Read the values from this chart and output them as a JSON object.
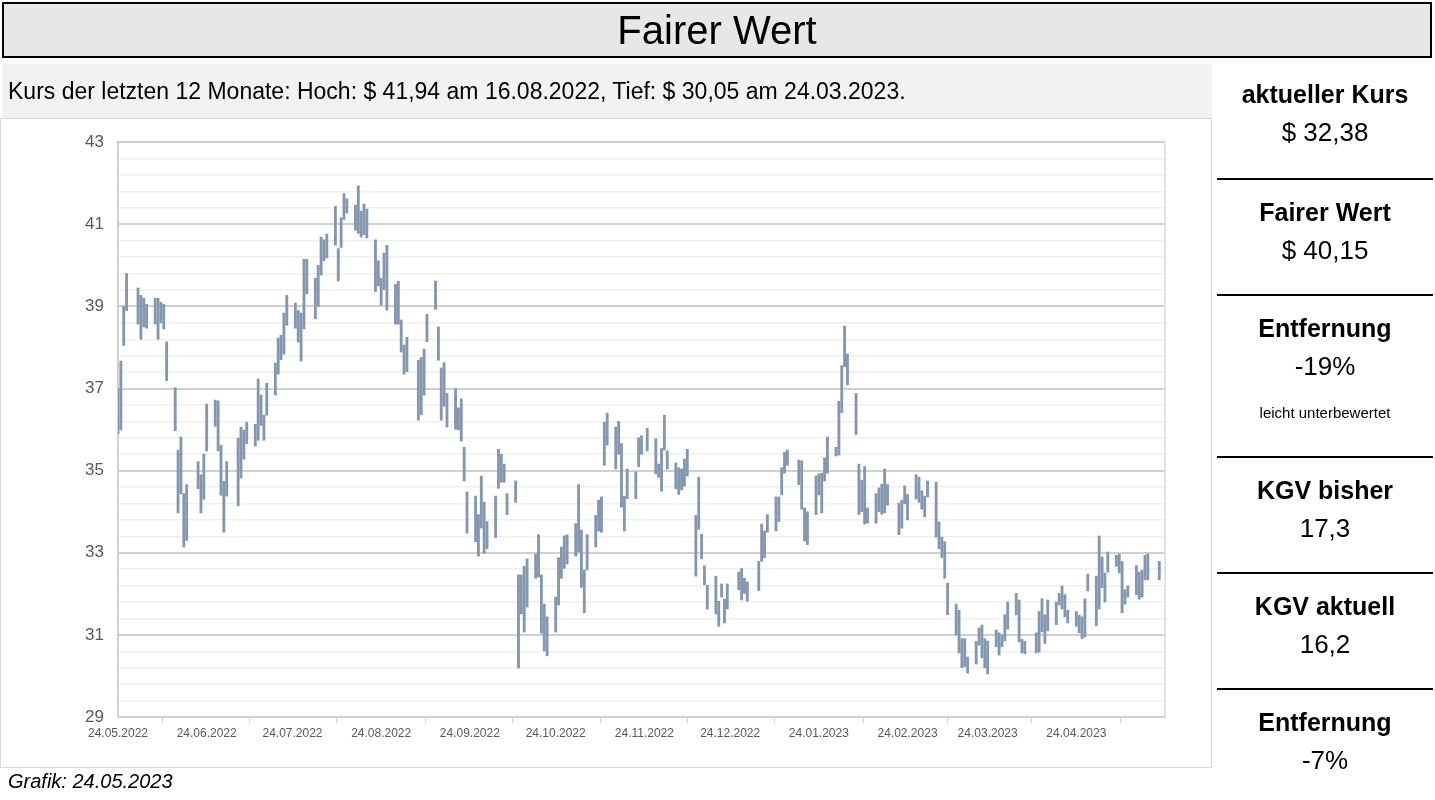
{
  "chart_data": [
    {
      "type": "bar",
      "title": "Fairer Wert",
      "subtitle": "Kurs der letzten 12 Monate: Hoch: $ 41,94 am 16.08.2022, Tief: $ 30,05 am 24.03.2023.",
      "color": "#8497b0",
      "grid": "y",
      "x": [
        "2022-05-24",
        "2022-05-25",
        "2022-05-26",
        "2022-05-27",
        "2022-05-31",
        "2022-06-01",
        "2022-06-02",
        "2022-06-03",
        "2022-06-06",
        "2022-06-07",
        "2022-06-08",
        "2022-06-09",
        "2022-06-10",
        "2022-06-13",
        "2022-06-14",
        "2022-06-15",
        "2022-06-16",
        "2022-06-17",
        "2022-06-21",
        "2022-06-22",
        "2022-06-23",
        "2022-06-24",
        "2022-06-27",
        "2022-06-28",
        "2022-06-29",
        "2022-06-30",
        "2022-07-01",
        "2022-07-05",
        "2022-07-06",
        "2022-07-07",
        "2022-07-08",
        "2022-07-11",
        "2022-07-12",
        "2022-07-13",
        "2022-07-14",
        "2022-07-15",
        "2022-07-18",
        "2022-07-19",
        "2022-07-20",
        "2022-07-21",
        "2022-07-22",
        "2022-07-25",
        "2022-07-26",
        "2022-07-27",
        "2022-07-28",
        "2022-07-29",
        "2022-08-01",
        "2022-08-02",
        "2022-08-03",
        "2022-08-04",
        "2022-08-05",
        "2022-08-08",
        "2022-08-09",
        "2022-08-10",
        "2022-08-11",
        "2022-08-12",
        "2022-08-15",
        "2022-08-16",
        "2022-08-17",
        "2022-08-18",
        "2022-08-19",
        "2022-08-22",
        "2022-08-23",
        "2022-08-24",
        "2022-08-25",
        "2022-08-26",
        "2022-08-29",
        "2022-08-30",
        "2022-08-31",
        "2022-09-01",
        "2022-09-02",
        "2022-09-06",
        "2022-09-07",
        "2022-09-08",
        "2022-09-09",
        "2022-09-12",
        "2022-09-13",
        "2022-09-14",
        "2022-09-15",
        "2022-09-16",
        "2022-09-19",
        "2022-09-20",
        "2022-09-21",
        "2022-09-22",
        "2022-09-23",
        "2022-09-26",
        "2022-09-27",
        "2022-09-28",
        "2022-09-29",
        "2022-09-30",
        "2022-10-03",
        "2022-10-04",
        "2022-10-05",
        "2022-10-06",
        "2022-10-07",
        "2022-10-10",
        "2022-10-11",
        "2022-10-12",
        "2022-10-13",
        "2022-10-14",
        "2022-10-17",
        "2022-10-18",
        "2022-10-19",
        "2022-10-20",
        "2022-10-21",
        "2022-10-24",
        "2022-10-25",
        "2022-10-26",
        "2022-10-27",
        "2022-10-28",
        "2022-10-31",
        "2022-11-01",
        "2022-11-02",
        "2022-11-03",
        "2022-11-04",
        "2022-11-07",
        "2022-11-08",
        "2022-11-09",
        "2022-11-10",
        "2022-11-11",
        "2022-11-14",
        "2022-11-15",
        "2022-11-16",
        "2022-11-17",
        "2022-11-18",
        "2022-11-21",
        "2022-11-22",
        "2022-11-23",
        "2022-11-25",
        "2022-11-28",
        "2022-11-29",
        "2022-11-30",
        "2022-12-01",
        "2022-12-02",
        "2022-12-05",
        "2022-12-06",
        "2022-12-07",
        "2022-12-08",
        "2022-12-09",
        "2022-12-12",
        "2022-12-13",
        "2022-12-14",
        "2022-12-15",
        "2022-12-16",
        "2022-12-19",
        "2022-12-20",
        "2022-12-21",
        "2022-12-22",
        "2022-12-23",
        "2022-12-27",
        "2022-12-28",
        "2022-12-29",
        "2022-12-30",
        "2023-01-03",
        "2023-01-04",
        "2023-01-05",
        "2023-01-06",
        "2023-01-09",
        "2023-01-10",
        "2023-01-11",
        "2023-01-12",
        "2023-01-13",
        "2023-01-17",
        "2023-01-18",
        "2023-01-19",
        "2023-01-20",
        "2023-01-23",
        "2023-01-24",
        "2023-01-25",
        "2023-01-26",
        "2023-01-27",
        "2023-01-30",
        "2023-01-31",
        "2023-02-01",
        "2023-02-02",
        "2023-02-03",
        "2023-02-06",
        "2023-02-07",
        "2023-02-08",
        "2023-02-09",
        "2023-02-10",
        "2023-02-13",
        "2023-02-14",
        "2023-02-15",
        "2023-02-16",
        "2023-02-17",
        "2023-02-21",
        "2023-02-22",
        "2023-02-23",
        "2023-02-24",
        "2023-02-27",
        "2023-02-28",
        "2023-03-01",
        "2023-03-02",
        "2023-03-03",
        "2023-03-06",
        "2023-03-07",
        "2023-03-08",
        "2023-03-09",
        "2023-03-10",
        "2023-03-13",
        "2023-03-14",
        "2023-03-15",
        "2023-03-16",
        "2023-03-17",
        "2023-03-20",
        "2023-03-21",
        "2023-03-22",
        "2023-03-23",
        "2023-03-24",
        "2023-03-27",
        "2023-03-28",
        "2023-03-29",
        "2023-03-30",
        "2023-03-31",
        "2023-04-03",
        "2023-04-04",
        "2023-04-05",
        "2023-04-06",
        "2023-04-10",
        "2023-04-11",
        "2023-04-12",
        "2023-04-13",
        "2023-04-14",
        "2023-04-17",
        "2023-04-18",
        "2023-04-19",
        "2023-04-20",
        "2023-04-21",
        "2023-04-24",
        "2023-04-25",
        "2023-04-26",
        "2023-04-27",
        "2023-04-28",
        "2023-05-01",
        "2023-05-02",
        "2023-05-03",
        "2023-05-04",
        "2023-05-05",
        "2023-05-08",
        "2023-05-09",
        "2023-05-10",
        "2023-05-11",
        "2023-05-12",
        "2023-05-15",
        "2023-05-16",
        "2023-05-17",
        "2023-05-18",
        "2023-05-19",
        "2023-05-23"
      ],
      "base": [
        35.9,
        35.99,
        38.05,
        38.9,
        38.57,
        38.2,
        38.5,
        38.47,
        38.57,
        38.2,
        38.6,
        38.45,
        37.19,
        35.97,
        33.97,
        34.44,
        33.14,
        33.3,
        34.56,
        33.97,
        34.3,
        35.48,
        36.08,
        35.48,
        34.4,
        33.5,
        34.38,
        34.14,
        34.82,
        35.28,
        35.66,
        35.6,
        35.74,
        36.1,
        35.74,
        36.35,
        36.84,
        37.35,
        37.7,
        37.84,
        38.54,
        38.47,
        38.13,
        37.67,
        38.45,
        39.31,
        38.7,
        39.0,
        39.76,
        40.11,
        40.18,
        40.49,
        39.62,
        40.44,
        41.12,
        41.28,
        40.86,
        40.78,
        40.69,
        40.75,
        40.67,
        39.36,
        39.5,
        39.03,
        39.41,
        38.91,
        38.57,
        38.57,
        37.89,
        37.35,
        37.41,
        36.23,
        36.36,
        36.84,
        38.14,
        38.93,
        37.69,
        36.23,
        36.57,
        36.06,
        36.01,
        35.99,
        35.72,
        34.75,
        33.48,
        33.27,
        32.92,
        33.6,
        32.99,
        33.1,
        33.37,
        34.57,
        34.72,
        34.72,
        33.93,
        34.23,
        30.19,
        31.51,
        31.07,
        31.68,
        32.38,
        32.41,
        31.04,
        30.61,
        30.49,
        31.07,
        31.73,
        32.38,
        32.62,
        32.73,
        32.92,
        33.02,
        32.16,
        31.54,
        32.58,
        33.14,
        33.53,
        33.5,
        35.13,
        35.62,
        35.04,
        35.4,
        34.11,
        33.53,
        34.32,
        34.32,
        35.1,
        35.4,
        35.48,
        34.92,
        34.84,
        34.5,
        35.5,
        35.04,
        34.56,
        34.42,
        34.53,
        34.62,
        34.87,
        32.43,
        33.57,
        32.85,
        32.22,
        31.63,
        31.51,
        31.21,
        31.92,
        31.29,
        31.63,
        32.1,
        31.85,
        32.01,
        31.82,
        32.08,
        32.79,
        32.88,
        33.5,
        33.53,
        33.76,
        34.41,
        34.94,
        35.13,
        34.66,
        34.06,
        33.29,
        33.2,
        33.93,
        34.41,
        33.97,
        34.75,
        34.94,
        35.36,
        35.38,
        36.41,
        37.53,
        37.09,
        35.88,
        33.93,
        34.0,
        33.7,
        33.72,
        33.72,
        34.0,
        33.94,
        33.97,
        34.16,
        33.44,
        33.6,
        34.19,
        33.8,
        34.31,
        34.23,
        34.06,
        33.88,
        34.36,
        33.38,
        33.1,
        32.88,
        32.38,
        31.49,
        31.0,
        30.56,
        30.2,
        30.23,
        30.07,
        30.29,
        30.75,
        30.44,
        30.2,
        30.05,
        30.71,
        30.51,
        30.71,
        30.85,
        31.14,
        31.49,
        30.83,
        30.56,
        30.54,
        30.56,
        30.58,
        31.07,
        30.79,
        31.1,
        31.25,
        31.73,
        31.63,
        31.44,
        31.29,
        31.21,
        31.05,
        30.91,
        30.95,
        32.07,
        31.22,
        31.63,
        32.15,
        31.8,
        32.53,
        32.67,
        32.51,
        31.54,
        31.75,
        31.92,
        31.98,
        31.87,
        31.92,
        32.34,
        32.34,
        32.34
      ],
      "values": [
        1.1,
        1.68,
        0.95,
        0.9,
        0.88,
        1.07,
        0.7,
        0.58,
        0.63,
        1.0,
        0.5,
        0.6,
        0.95,
        1.05,
        1.53,
        1.38,
        1.3,
        1.36,
        0.66,
        0.93,
        1.1,
        1.14,
        0.64,
        1.22,
        1.22,
        1.24,
        0.84,
        1.65,
        1.24,
        0.71,
        0.52,
        0.53,
        1.49,
        0.74,
        0.61,
        0.78,
        0.78,
        0.88,
        0.6,
        1.0,
        0.73,
        0.61,
        0.77,
        1.17,
        1.7,
        0.84,
        0.99,
        1.0,
        0.93,
        0.51,
        0.58,
        0.95,
        0.79,
        0.72,
        0.63,
        0.34,
        0.61,
        1.16,
        0.63,
        0.74,
        0.7,
        1.26,
        0.61,
        0.66,
        0.89,
        1.58,
        0.97,
        1.04,
        0.78,
        0.71,
        0.84,
        1.46,
        1.4,
        1.12,
        0.67,
        0.69,
        0.81,
        1.27,
        1.06,
        0.82,
        0.99,
        0.54,
        1.03,
        0.82,
        1.0,
        1.11,
        1.01,
        1.27,
        1.24,
        0.66,
        1.01,
        0.95,
        0.68,
        0.44,
        0.51,
        0.52,
        2.27,
        0.95,
        1.6,
        1.17,
        0.59,
        1.03,
        1.42,
        1.14,
        0.95,
        0.85,
        1.15,
        0.76,
        0.79,
        0.71,
        0.79,
        1.64,
        1.39,
        1.04,
        0.86,
        0.77,
        0.75,
        0.86,
        1.05,
        0.78,
        1.02,
        0.8,
        1.55,
        0.85,
        0.72,
        0.65,
        0.7,
        0.45,
        0.55,
        0.86,
        0.32,
        1.04,
        0.85,
        0.44,
        0.63,
        0.65,
        0.51,
        0.66,
        0.65,
        1.48,
        1.27,
        0.6,
        0.46,
        0.58,
        0.92,
        0.61,
        0.32,
        0.58,
        0.61,
        0.43,
        0.77,
        0.37,
        0.47,
        0.71,
        0.91,
        0.65,
        0.43,
        0.83,
        0.6,
        0.66,
        0.51,
        0.37,
        0.6,
        1.18,
        0.8,
        0.8,
        0.94,
        0.51,
        0.97,
        0.56,
        0.88,
        0.21,
        1.31,
        1.15,
        0.99,
        0.75,
        1.0,
        1.23,
        0.77,
        1.4,
        0.37,
        0.72,
        0.58,
        0.73,
        1.07,
        0.5,
        0.77,
        0.68,
        0.44,
        0.62,
        0.59,
        0.61,
        0.45,
        0.5,
        0.39,
        1.34,
        0.65,
        0.5,
        0.89,
        0.77,
        0.75,
        1.04,
        0.71,
        0.68,
        0.39,
        0.55,
        0.42,
        0.8,
        0.71,
        0.8,
        0.41,
        0.54,
        0.29,
        0.64,
        0.66,
        0.52,
        1.02,
        0.33,
        0.3,
        0.49,
        0.99,
        0.81,
        0.7,
        0.75,
        0.55,
        0.28,
        0.56,
        0.54,
        0.31,
        0.36,
        0.43,
        0.53,
        0.93,
        0.41,
        1.21,
        1.78,
        0.75,
        0.71,
        0.49,
        0.27,
        0.46,
        1.25,
        0.35,
        0.27,
        0.71,
        0.66,
        0.66,
        0.6,
        0.63,
        0.45
      ],
      "xlim": [
        "2022-05-24",
        "2023-05-25"
      ],
      "xticks": [
        {
          "value": "2022-05-24",
          "label": "24.05.2022"
        },
        {
          "value": "2022-06-24",
          "label": "24.06.2022"
        },
        {
          "value": "2022-07-24",
          "label": "24.07.2022"
        },
        {
          "value": "2022-08-24",
          "label": "24.08.2022"
        },
        {
          "value": "2022-09-24",
          "label": "24.09.2022"
        },
        {
          "value": "2022-10-24",
          "label": "24.10.2022"
        },
        {
          "value": "2022-11-24",
          "label": "24.11.2022"
        },
        {
          "value": "2022-12-24",
          "label": "24.12.2022"
        },
        {
          "value": "2023-01-24",
          "label": "24.01.2023"
        },
        {
          "value": "2023-02-24",
          "label": "24.02.2023"
        },
        {
          "value": "2023-03-24",
          "label": "24.03.2023"
        },
        {
          "value": "2023-04-24",
          "label": "24.04.2023"
        }
      ],
      "ylim": [
        29,
        43
      ],
      "yticks": [
        29,
        {
          "value": 29.4,
          "label": null
        },
        {
          "value": 29.8,
          "label": null
        },
        {
          "value": 30.2,
          "label": null
        },
        {
          "value": 30.6,
          "label": null
        },
        31,
        {
          "value": 31.4,
          "label": null
        },
        {
          "value": 31.8,
          "label": null
        },
        {
          "value": 32.2,
          "label": null
        },
        {
          "value": 32.6,
          "label": null
        },
        33,
        {
          "value": 33.4,
          "label": null
        },
        {
          "value": 33.8,
          "label": null
        },
        {
          "value": 34.2,
          "label": null
        },
        {
          "value": 34.6,
          "label": null
        },
        35,
        {
          "value": 35.4,
          "label": null
        },
        {
          "value": 35.8,
          "label": null
        },
        {
          "value": 36.2,
          "label": null
        },
        {
          "value": 36.6,
          "label": null
        },
        37,
        {
          "value": 37.4,
          "label": null
        },
        {
          "value": 37.8,
          "label": null
        },
        {
          "value": 38.2,
          "label": null
        },
        {
          "value": 38.6,
          "label": null
        },
        39,
        {
          "value": 39.4,
          "label": null
        },
        {
          "value": 39.8,
          "label": null
        },
        {
          "value": 40.2,
          "label": null
        },
        {
          "value": 40.6,
          "label": null
        },
        41,
        {
          "value": 41.4,
          "label": null
        },
        {
          "value": 41.8,
          "label": null
        },
        {
          "value": 42.2,
          "label": null
        },
        {
          "value": 42.6,
          "label": null
        },
        43
      ],
      "annotations": [
        "Grafik: 24.05.2023"
      ]
    },
    {
      "type": "other",
      "title": "aktueller Kurs",
      "subtitle": "$ 32,38"
    },
    {
      "type": "other",
      "title": "Fairer Wert",
      "subtitle": "$ 40,15"
    },
    {
      "type": "other",
      "title": "Entfernung",
      "subtitle": "-19%",
      "annotations": [
        "leicht unterbewertet"
      ]
    },
    {
      "type": "other",
      "title": "KGV bisher",
      "subtitle": "17,3"
    },
    {
      "type": "other",
      "title": "KGV aktuell",
      "subtitle": "16,2"
    },
    {
      "type": "other",
      "title": "Entfernung",
      "subtitle": "-7%"
    }
  ]
}
